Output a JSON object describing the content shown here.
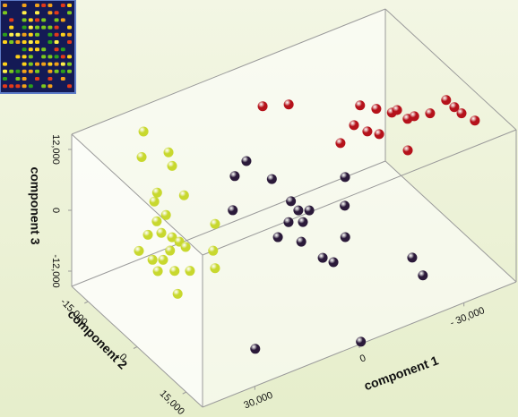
{
  "chart_data": {
    "type": "scatter3d",
    "xlabel": "component 1",
    "ylabel": "component 2",
    "zlabel": "component 3",
    "xlim": [
      -45000,
      45000
    ],
    "ylim": [
      -20000,
      20000
    ],
    "zlim": [
      -15000,
      15000
    ],
    "xticks": [
      {
        "value": 30000,
        "label": "30,000"
      },
      0,
      {
        "value": -30000,
        "label": "- 30,000"
      }
    ],
    "yticks": [
      {
        "value": -15000,
        "label": "-15,000"
      },
      0,
      {
        "value": 15000,
        "label": "15,000"
      }
    ],
    "zticks": [
      {
        "value": 12000,
        "label": "12,000"
      },
      0,
      {
        "value": -12000,
        "label": "-12,000"
      }
    ],
    "series": [
      {
        "color": "#c8d82e",
        "x": [
          27500,
          30000,
          23600,
          19100,
          27900,
          30400,
          23100,
          31000,
          34200,
          23100,
          38900,
          35800,
          34600,
          34100,
          44200,
          37900,
          34000,
          29300,
          43400,
          41300,
          41500,
          38100,
          35000,
          29400,
          40700
        ],
        "y": [
          -16700,
          -14600,
          -13200,
          -16900,
          -12100,
          -10300,
          -9000,
          -6100,
          -5500,
          500,
          -3200,
          -2400,
          -400,
          1300,
          -300,
          2500,
          3100,
          6500,
          3000,
          4000,
          2600,
          4100,
          5500,
          7200,
          7800
        ],
        "z": [
          12700,
          9600,
          9600,
          3500,
          3500,
          3500,
          3500,
          3500,
          3500,
          3500,
          3500,
          3500,
          3500,
          3500,
          3500,
          3500,
          3500,
          3500,
          3500,
          3500,
          500,
          500,
          500,
          500,
          -1100
        ]
      },
      {
        "color": "#2b1a3a",
        "x": [
          -1000,
          -2200,
          4600,
          -17300,
          12400,
          -1200,
          -700,
          -2900,
          3800,
          900,
          9200,
          5500,
          -11000,
          -4300,
          4700,
          3500,
          -19100,
          -19900,
          29600,
          -900
        ],
        "y": [
          -15600,
          -9100,
          -13200,
          -2800,
          -5500,
          -2200,
          600,
          1600,
          2400,
          3700,
          4900,
          8100,
          3800,
          11100,
          13800,
          15800,
          15800,
          18200,
          19700,
          19500
        ],
        "z": [
          -300,
          -300,
          -300,
          -300,
          -300,
          -300,
          -300,
          -300,
          -300,
          -300,
          -300,
          -300,
          -300,
          -300,
          -300,
          -300,
          -5600,
          -7900,
          -7900,
          -15000
        ]
      },
      {
        "color": "#b5121b",
        "x": [
          -3500,
          -9100,
          -23200,
          -25700,
          -28000,
          -29600,
          -29800,
          -31700,
          -35500,
          -41600,
          -41700,
          -41800,
          -42900,
          -17700,
          -19000,
          -20800,
          -11100,
          -23000
        ],
        "y": [
          -13300,
          -11300,
          -4500,
          -2200,
          100,
          0,
          3000,
          3000,
          3800,
          2200,
          4600,
          6700,
          9600,
          -500,
          2200,
          3900,
          2400,
          10300
        ],
        "z": [
          11200,
          11200,
          11200,
          11200,
          11200,
          11200,
          11200,
          11200,
          11200,
          11200,
          11200,
          11200,
          11200,
          11200,
          11200,
          11200,
          11200,
          11200
        ]
      }
    ]
  }
}
